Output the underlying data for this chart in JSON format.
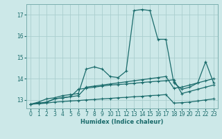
{
  "xlabel": "Humidex (Indice chaleur)",
  "ylabel": "",
  "bg_color": "#cce8e8",
  "grid_color": "#aacece",
  "line_color": "#1a6b6b",
  "xlim": [
    -0.5,
    23.5
  ],
  "ylim": [
    12.6,
    17.5
  ],
  "xticks": [
    0,
    1,
    2,
    3,
    4,
    5,
    6,
    7,
    8,
    9,
    10,
    11,
    12,
    13,
    14,
    15,
    16,
    17,
    18,
    19,
    20,
    21,
    22,
    23
  ],
  "yticks": [
    13,
    14,
    15,
    16,
    17
  ],
  "lines": [
    {
      "x": [
        0,
        1,
        2,
        3,
        4,
        5,
        6,
        7,
        8,
        9,
        10,
        11,
        12,
        13,
        14,
        15,
        16,
        17,
        18,
        19,
        20,
        21,
        22,
        23
      ],
      "y": [
        12.8,
        12.9,
        13.05,
        13.1,
        13.2,
        13.25,
        13.3,
        14.45,
        14.55,
        14.45,
        14.1,
        14.05,
        14.35,
        17.2,
        17.25,
        17.2,
        15.85,
        15.85,
        13.8,
        13.5,
        13.6,
        13.8,
        14.8,
        13.8
      ]
    },
    {
      "x": [
        0,
        1,
        2,
        3,
        4,
        5,
        6,
        7,
        8,
        9,
        10,
        11,
        12,
        13,
        14,
        15,
        16,
        17,
        18,
        19,
        20,
        21,
        22,
        23
      ],
      "y": [
        12.8,
        12.85,
        12.9,
        13.05,
        13.1,
        13.15,
        13.2,
        13.6,
        13.65,
        13.7,
        13.75,
        13.8,
        13.85,
        13.9,
        13.95,
        14.0,
        14.05,
        14.1,
        13.55,
        13.6,
        13.7,
        13.8,
        13.9,
        14.0
      ]
    },
    {
      "x": [
        0,
        1,
        2,
        3,
        4,
        5,
        6,
        7,
        8,
        9,
        10,
        11,
        12,
        13,
        14,
        15,
        16,
        17,
        18,
        19,
        20,
        21,
        22,
        23
      ],
      "y": [
        12.8,
        12.82,
        12.85,
        12.9,
        12.92,
        12.95,
        12.97,
        13.0,
        13.02,
        13.05,
        13.07,
        13.1,
        13.12,
        13.15,
        13.17,
        13.2,
        13.22,
        13.25,
        12.85,
        12.87,
        12.9,
        12.95,
        13.0,
        13.05
      ]
    },
    {
      "x": [
        0,
        1,
        2,
        3,
        4,
        5,
        6,
        7,
        8,
        9,
        10,
        11,
        12,
        13,
        14,
        15,
        16,
        17,
        18,
        19,
        20,
        21,
        22,
        23
      ],
      "y": [
        12.8,
        12.83,
        12.88,
        13.05,
        13.1,
        13.15,
        13.5,
        13.55,
        13.6,
        13.65,
        13.7,
        13.72,
        13.75,
        13.78,
        13.82,
        13.85,
        13.88,
        13.9,
        13.95,
        13.3,
        13.4,
        13.5,
        13.6,
        13.7
      ]
    }
  ]
}
